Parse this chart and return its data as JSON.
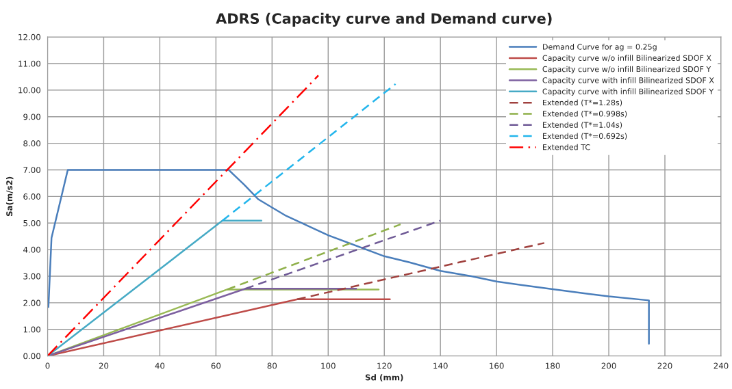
{
  "chart_data": {
    "type": "line",
    "title": "ADRS (Capacity curve and Demand curve)",
    "xlabel": "Sd (mm)",
    "ylabel": "Sa(m/s2)",
    "xlim": [
      0,
      240
    ],
    "xticks": [
      0,
      20,
      40,
      60,
      80,
      100,
      120,
      140,
      160,
      180,
      200,
      220,
      240
    ],
    "ylim": [
      0,
      12
    ],
    "yticks": [
      {
        "value": 0,
        "label": "0.00"
      },
      {
        "value": 1,
        "label": "1.00"
      },
      {
        "value": 2,
        "label": "2.00"
      },
      {
        "value": 3,
        "label": "3.00"
      },
      {
        "value": 4,
        "label": "4.00"
      },
      {
        "value": 5,
        "label": "5.00"
      },
      {
        "value": 6,
        "label": "6.00"
      },
      {
        "value": 7,
        "label": "7.00"
      },
      {
        "value": 8,
        "label": "8.00"
      },
      {
        "value": 9,
        "label": "9.00"
      },
      {
        "value": 10,
        "label": "10.00"
      },
      {
        "value": 11,
        "label": "11.00"
      },
      {
        "value": 12,
        "label": "12.00"
      }
    ],
    "grid": true,
    "legend": "top right",
    "marker": "none",
    "series": [
      {
        "name": "Demand Curve for ag = 0.25g",
        "color": "#4a7ebb",
        "line_style": "solid",
        "x": [
          0.3,
          1.4,
          7.2,
          64.5,
          70,
          75,
          85,
          100,
          120,
          129,
          140,
          151,
          160,
          170,
          180,
          193,
          200,
          214.3,
          214.3
        ],
        "values": [
          1.84,
          4.44,
          7.0,
          7.0,
          6.45,
          5.9,
          5.27,
          4.54,
          3.75,
          3.52,
          3.2,
          3.0,
          2.8,
          2.65,
          2.51,
          2.33,
          2.24,
          2.09,
          0.46
        ]
      },
      {
        "name": "Capacity curve w/o infill Bilinearized SDOF X",
        "color": "#be4b48",
        "line_style": "solid",
        "x": [
          0,
          89,
          122
        ],
        "values": [
          0,
          2.13,
          2.13
        ]
      },
      {
        "name": "Capacity curve w/o infill Bilinearized SDOF Y",
        "color": "#98b954",
        "line_style": "solid",
        "x": [
          0,
          64,
          118
        ],
        "values": [
          0,
          2.5,
          2.5
        ]
      },
      {
        "name": "Capacity curve with infill Bilinearized SDOF X",
        "color": "#7d60a0",
        "line_style": "solid",
        "x": [
          0,
          70.5,
          110
        ],
        "values": [
          0,
          2.53,
          2.53
        ]
      },
      {
        "name": "Capacity curve with infill Bilinearized SDOF Y",
        "color": "#46aac5",
        "line_style": "solid",
        "x": [
          0,
          62.3,
          76.2
        ],
        "values": [
          0,
          5.09,
          5.09
        ]
      },
      {
        "name": "Extended (T*=1.28s)",
        "color": "#a0413e",
        "line_style": "dashed",
        "x": [
          89,
          177
        ],
        "values": [
          2.13,
          4.25
        ]
      },
      {
        "name": "Extended (T*=0.998s)",
        "color": "#8fb04a",
        "line_style": "dashed",
        "x": [
          64,
          125.8
        ],
        "values": [
          2.5,
          4.95
        ]
      },
      {
        "name": "Extended (T*=1.04s)",
        "color": "#6f5a96",
        "line_style": "dashed",
        "x": [
          70.5,
          140
        ],
        "values": [
          2.53,
          5.09
        ]
      },
      {
        "name": "Extended (T*=0.692s)",
        "color": "#22b5ec",
        "line_style": "dashed",
        "x": [
          62.3,
          124
        ],
        "values": [
          5.09,
          10.23
        ]
      },
      {
        "name": "Extended TC",
        "color": "#ff0000",
        "line_style": "dashdot",
        "x": [
          0,
          96.5
        ],
        "values": [
          0,
          10.55
        ]
      }
    ]
  }
}
